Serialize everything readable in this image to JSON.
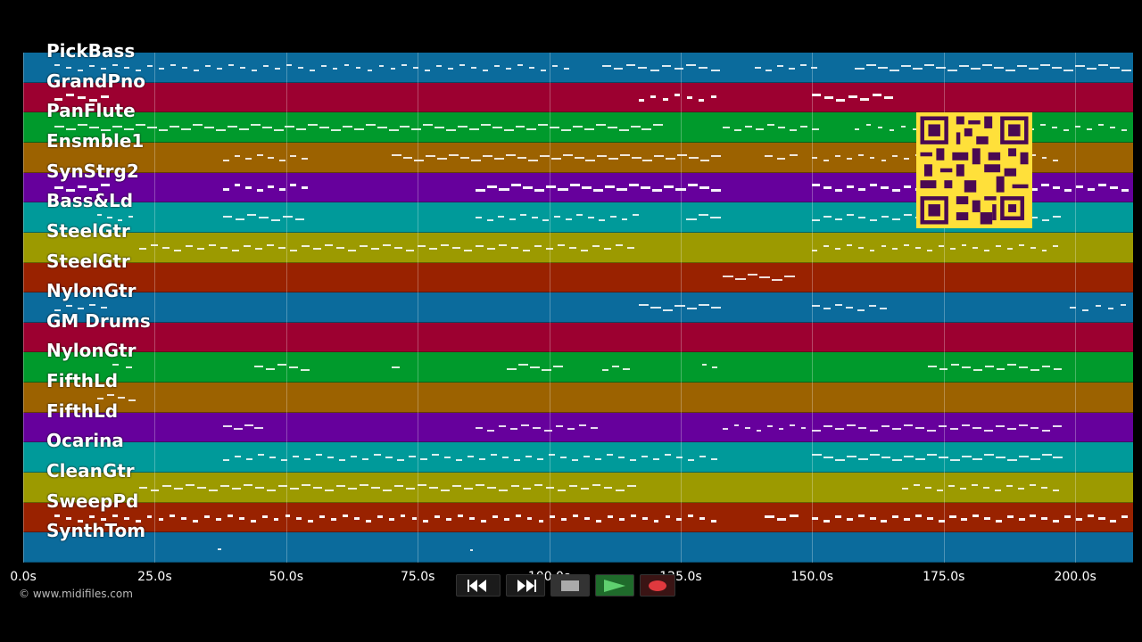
{
  "tracks": [
    {
      "name": "PickBass",
      "color": "#0b6b9c"
    },
    {
      "name": "GrandPno",
      "color": "#9c0030"
    },
    {
      "name": "PanFlute",
      "color": "#009a2c"
    },
    {
      "name": "Ensmble1",
      "color": "#9c6200"
    },
    {
      "name": "SynStrg2",
      "color": "#66009c"
    },
    {
      "name": "Bass&Ld",
      "color": "#009a9a"
    },
    {
      "name": "SteelGtr",
      "color": "#9c9a00"
    },
    {
      "name": "SteelGtr",
      "color": "#992200"
    },
    {
      "name": "NylonGtr",
      "color": "#0b6b9c"
    },
    {
      "name": "GM Drums",
      "color": "#9c0030"
    },
    {
      "name": "NylonGtr",
      "color": "#009a2c"
    },
    {
      "name": "FifthLd",
      "color": "#9c6200"
    },
    {
      "name": "FifthLd",
      "color": "#66009c"
    },
    {
      "name": "Ocarina",
      "color": "#009a9a"
    },
    {
      "name": "CleanGtr",
      "color": "#9c9a00"
    },
    {
      "name": "SweepPd",
      "color": "#992200"
    },
    {
      "name": "SynthTom",
      "color": "#0b6b9c"
    }
  ],
  "timeline": {
    "max_seconds": 211,
    "ticks": [
      "0.0s",
      "25.0s",
      "50.0s",
      "75.0s",
      "100.0s",
      "125.0s",
      "150.0s",
      "175.0s",
      "200.0s"
    ],
    "tick_values": [
      0,
      25,
      50,
      75,
      100,
      125,
      150,
      175,
      200
    ]
  },
  "notes": [
    [
      [
        6,
        105
      ],
      [
        110,
        133
      ],
      [
        139,
        152
      ],
      [
        158,
        211
      ]
    ],
    [
      [
        6,
        17
      ],
      [
        117,
        133
      ],
      [
        150,
        166
      ]
    ],
    [
      [
        6,
        122
      ],
      [
        133,
        152
      ],
      [
        158,
        211
      ]
    ],
    [
      [
        38,
        55
      ],
      [
        70,
        133
      ],
      [
        141,
        148
      ],
      [
        150,
        198
      ]
    ],
    [
      [
        6,
        17
      ],
      [
        38,
        55
      ],
      [
        86,
        133
      ],
      [
        150,
        211
      ]
    ],
    [
      [
        14,
        22
      ],
      [
        38,
        54
      ],
      [
        86,
        118
      ],
      [
        126,
        133
      ],
      [
        150,
        198
      ]
    ],
    [
      [
        22,
        117
      ],
      [
        150,
        198
      ]
    ],
    [
      [
        133,
        147
      ]
    ],
    [
      [
        6,
        17
      ],
      [
        117,
        133
      ],
      [
        150,
        165
      ],
      [
        199,
        211
      ]
    ],
    [],
    [
      [
        17,
        22
      ],
      [
        44,
        55
      ],
      [
        70,
        73
      ],
      [
        92,
        103
      ],
      [
        110,
        116
      ],
      [
        129,
        133
      ],
      [
        172,
        198
      ]
    ],
    [
      [
        14,
        22
      ]
    ],
    [
      [
        38,
        46
      ],
      [
        86,
        110
      ],
      [
        133,
        150
      ],
      [
        150,
        198
      ]
    ],
    [
      [
        38,
        133
      ],
      [
        150,
        198
      ]
    ],
    [
      [
        22,
        117
      ],
      [
        167,
        198
      ]
    ],
    [
      [
        6,
        133
      ],
      [
        141,
        148
      ],
      [
        150,
        211
      ]
    ],
    [
      [
        37,
        38
      ],
      [
        85,
        86
      ]
    ]
  ],
  "copyright": "© www.midifiles.com",
  "controls": [
    {
      "name": "rewind",
      "icon": "rewind-icon"
    },
    {
      "name": "fast-forward",
      "icon": "fast-forward-icon"
    },
    {
      "name": "stop",
      "icon": "stop-icon"
    },
    {
      "name": "play",
      "icon": "play-icon"
    },
    {
      "name": "record",
      "icon": "record-icon"
    }
  ],
  "qr_code": {
    "icon": "qr-code-icon",
    "color": "#ffe03a"
  }
}
